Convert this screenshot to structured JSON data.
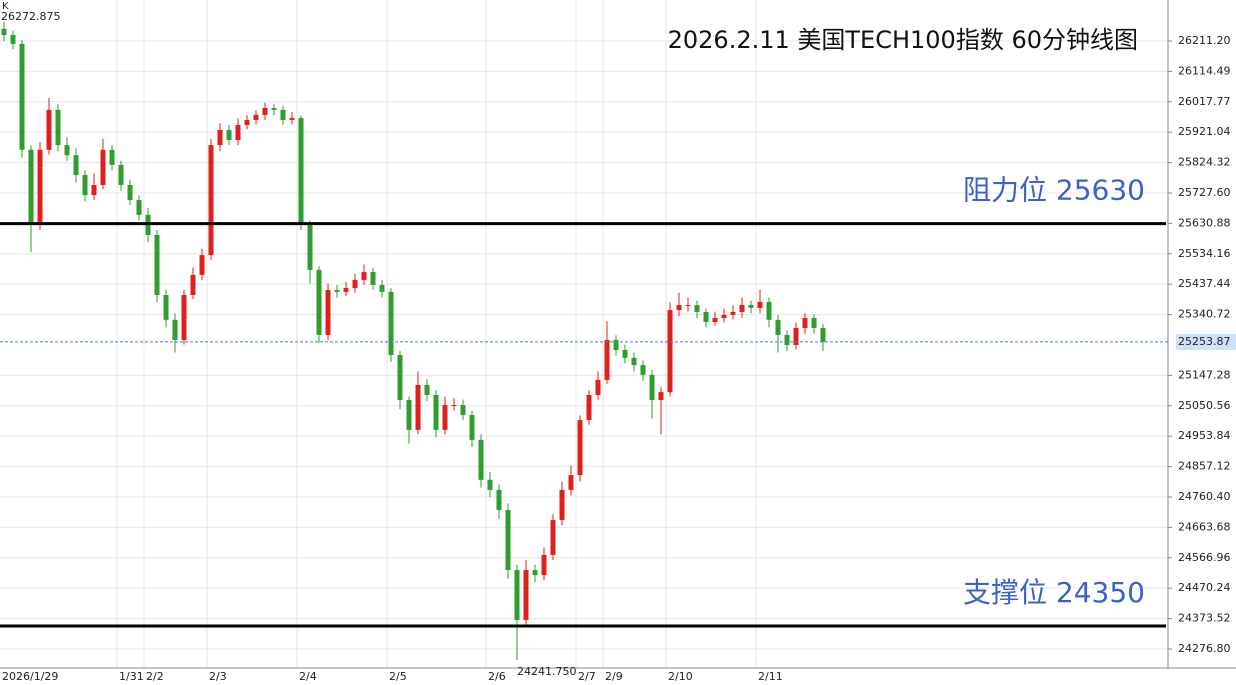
{
  "chart_data": {
    "type": "candlestick",
    "title": "2026.2.11 美国TECH100指数 60分钟线图",
    "corner_label": "K",
    "up_color": "#e0201b",
    "down_color": "#2e9e2e",
    "grid": true,
    "ylim": [
      24216.3,
      26341.6
    ],
    "yticks": [
      {
        "value": 26211.2,
        "label": "26211.20"
      },
      26114.49,
      26017.77,
      25921.04,
      25824.32,
      {
        "value": 25727.6,
        "label": "25727.60"
      },
      25630.88,
      25534.16,
      25437.44,
      25340.72,
      25147.28,
      25050.56,
      24953.84,
      24857.12,
      {
        "value": 24760.4,
        "label": "24760.40"
      },
      24663.68,
      24566.96,
      24470.24,
      24373.52,
      {
        "value": 24276.8,
        "label": "24276.80"
      }
    ],
    "last_price": 25253.87,
    "min_label": "24241.750",
    "levels": [
      {
        "label": "阻力位 25630",
        "value": 25630
      },
      {
        "label": "支撑位 24350",
        "value": 24350
      }
    ],
    "categories": [
      "2026/1/29",
      null,
      null,
      null,
      null,
      null,
      null,
      null,
      null,
      null,
      null,
      null,
      null,
      "1/31",
      null,
      null,
      "2/2",
      null,
      null,
      null,
      null,
      null,
      null,
      "2/3",
      null,
      null,
      null,
      null,
      null,
      null,
      null,
      null,
      null,
      "2/4",
      null,
      null,
      null,
      null,
      null,
      null,
      null,
      null,
      null,
      "2/5",
      null,
      null,
      null,
      null,
      null,
      null,
      null,
      null,
      null,
      null,
      "2/6",
      null,
      null,
      null,
      null,
      null,
      null,
      null,
      null,
      null,
      "2/7",
      null,
      null,
      "2/9",
      null,
      null,
      null,
      null,
      null,
      null,
      "2/10",
      null,
      null,
      null,
      null,
      null,
      null,
      null,
      null,
      null,
      "2/11",
      null,
      null,
      null,
      null,
      null,
      null,
      null
    ],
    "open": [
      26250,
      26230,
      26202,
      25865,
      25626,
      25865,
      25992,
      25880,
      25848,
      25785,
      25721,
      25753,
      25865,
      25817,
      25753,
      25705,
      25658,
      25594,
      25403,
      25324,
      25260,
      25403,
      25467,
      25530,
      25880,
      25928,
      25896,
      25944,
      25960,
      25976,
      25998,
      25992,
      25960,
      25966,
      25626,
      25483,
      25276,
      25419,
      25413,
      25425,
      25451,
      25476,
      25435,
      25413,
      25212,
      25069,
      24974,
      25117,
      25085,
      24974,
      25053,
      25053,
      25021,
      24942,
      24815,
      24783,
      24719,
      24528,
      24369,
      24528,
      24512,
      24576,
      24687,
      24783,
      24830,
      25005,
      25085,
      25133,
      25260,
      25228,
      25203,
      25180,
      25149,
      25069,
      25094,
      25355,
      25371,
      25371,
      25349,
      25317,
      25330,
      25340,
      25349,
      25371,
      25362,
      25381,
      25324,
      25276,
      25244,
      25298,
      25330,
      25298
    ],
    "close": [
      26230,
      26202,
      25865,
      25626,
      25865,
      25992,
      25880,
      25848,
      25785,
      25721,
      25753,
      25865,
      25817,
      25753,
      25705,
      25658,
      25594,
      25403,
      25324,
      25260,
      25403,
      25467,
      25530,
      25880,
      25928,
      25896,
      25944,
      25960,
      25976,
      25998,
      25992,
      25960,
      25966,
      25626,
      25483,
      25276,
      25419,
      25413,
      25425,
      25451,
      25476,
      25435,
      25413,
      25212,
      25069,
      24974,
      25117,
      25085,
      24974,
      25053,
      25053,
      25021,
      24942,
      24815,
      24783,
      24719,
      24528,
      24369,
      24528,
      24512,
      24576,
      24687,
      24783,
      24830,
      25005,
      25085,
      25133,
      25260,
      25228,
      25203,
      25180,
      25149,
      25069,
      25094,
      25355,
      25371,
      25371,
      25349,
      25317,
      25330,
      25340,
      25349,
      25371,
      25362,
      25381,
      25324,
      25276,
      25244,
      25298,
      25330,
      25298,
      25254
    ],
    "high": [
      26272.875,
      26245,
      26215,
      25880,
      25890,
      26030,
      26010,
      25905,
      25870,
      25800,
      25790,
      25900,
      25880,
      25830,
      25770,
      25720,
      25680,
      25610,
      25420,
      25345,
      25420,
      25490,
      25550,
      25900,
      25950,
      25945,
      25965,
      25975,
      25990,
      26015,
      26010,
      26005,
      25985,
      25975,
      25640,
      25495,
      25440,
      25435,
      25445,
      25470,
      25500,
      25490,
      25450,
      25425,
      25225,
      25080,
      25160,
      25135,
      25100,
      25080,
      25075,
      25070,
      25035,
      24960,
      24840,
      24800,
      24740,
      24545,
      24560,
      24545,
      24600,
      24705,
      24810,
      24860,
      25020,
      25100,
      25160,
      25320,
      25275,
      25245,
      25220,
      25195,
      25165,
      25110,
      25380,
      25410,
      25395,
      25385,
      25360,
      25350,
      25360,
      25370,
      25395,
      25385,
      25420,
      25395,
      25340,
      25290,
      25315,
      25345,
      25340,
      25310
    ],
    "low": [
      26210,
      26185,
      25840,
      25540,
      25610,
      25850,
      25860,
      25830,
      25760,
      25700,
      25705,
      25740,
      25800,
      25735,
      25690,
      25640,
      25570,
      25380,
      25300,
      25220,
      25245,
      25390,
      25450,
      25515,
      25860,
      25880,
      25880,
      25930,
      25945,
      25960,
      25975,
      25945,
      25945,
      25610,
      25440,
      25250,
      25260,
      25395,
      25400,
      25410,
      25435,
      25420,
      25395,
      25190,
      25040,
      24930,
      24960,
      25065,
      24950,
      24960,
      25035,
      25005,
      24920,
      24790,
      24760,
      24690,
      24500,
      24241.75,
      24350,
      24490,
      24495,
      24560,
      24670,
      24765,
      24810,
      24990,
      25070,
      25120,
      25210,
      25185,
      25160,
      25130,
      25010,
      24960,
      25080,
      25335,
      25350,
      25330,
      25300,
      25305,
      25315,
      25325,
      25330,
      25345,
      25345,
      25300,
      25220,
      25225,
      25230,
      25280,
      25280,
      25225
    ]
  }
}
